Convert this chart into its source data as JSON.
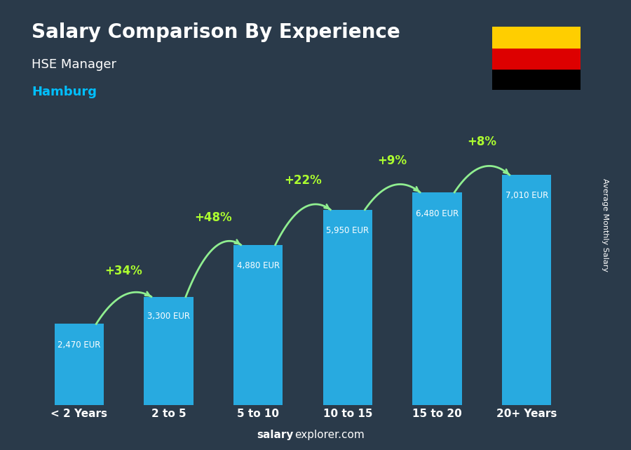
{
  "title": "Salary Comparison By Experience",
  "subtitle1": "HSE Manager",
  "subtitle2": "Hamburg",
  "categories": [
    "< 2 Years",
    "2 to 5",
    "5 to 10",
    "10 to 15",
    "15 to 20",
    "20+ Years"
  ],
  "values": [
    2470,
    3300,
    4880,
    5950,
    6480,
    7010
  ],
  "bar_color": "#29ABE2",
  "bar_color_dark": "#1A7FA8",
  "pct_labels": [
    "+34%",
    "+48%",
    "+22%",
    "+9%",
    "+8%"
  ],
  "value_labels": [
    "2,470 EUR",
    "3,300 EUR",
    "4,880 EUR",
    "5,950 EUR",
    "6,480 EUR",
    "7,010 EUR"
  ],
  "ylabel": "Average Monthly Salary",
  "footer": "salaryexplorer.com",
  "arrow_color": "#90EE90",
  "pct_color": "#ADFF2F",
  "title_color": "#FFFFFF",
  "subtitle1_color": "#FFFFFF",
  "subtitle2_color": "#00BFFF",
  "bg_color": "#1a2a3a",
  "ylim": [
    0,
    8500
  ],
  "flag_colors": [
    "#000000",
    "#DD0000",
    "#FFCE00"
  ],
  "footer_bold": "salary",
  "footer_regular": "explorer.com"
}
